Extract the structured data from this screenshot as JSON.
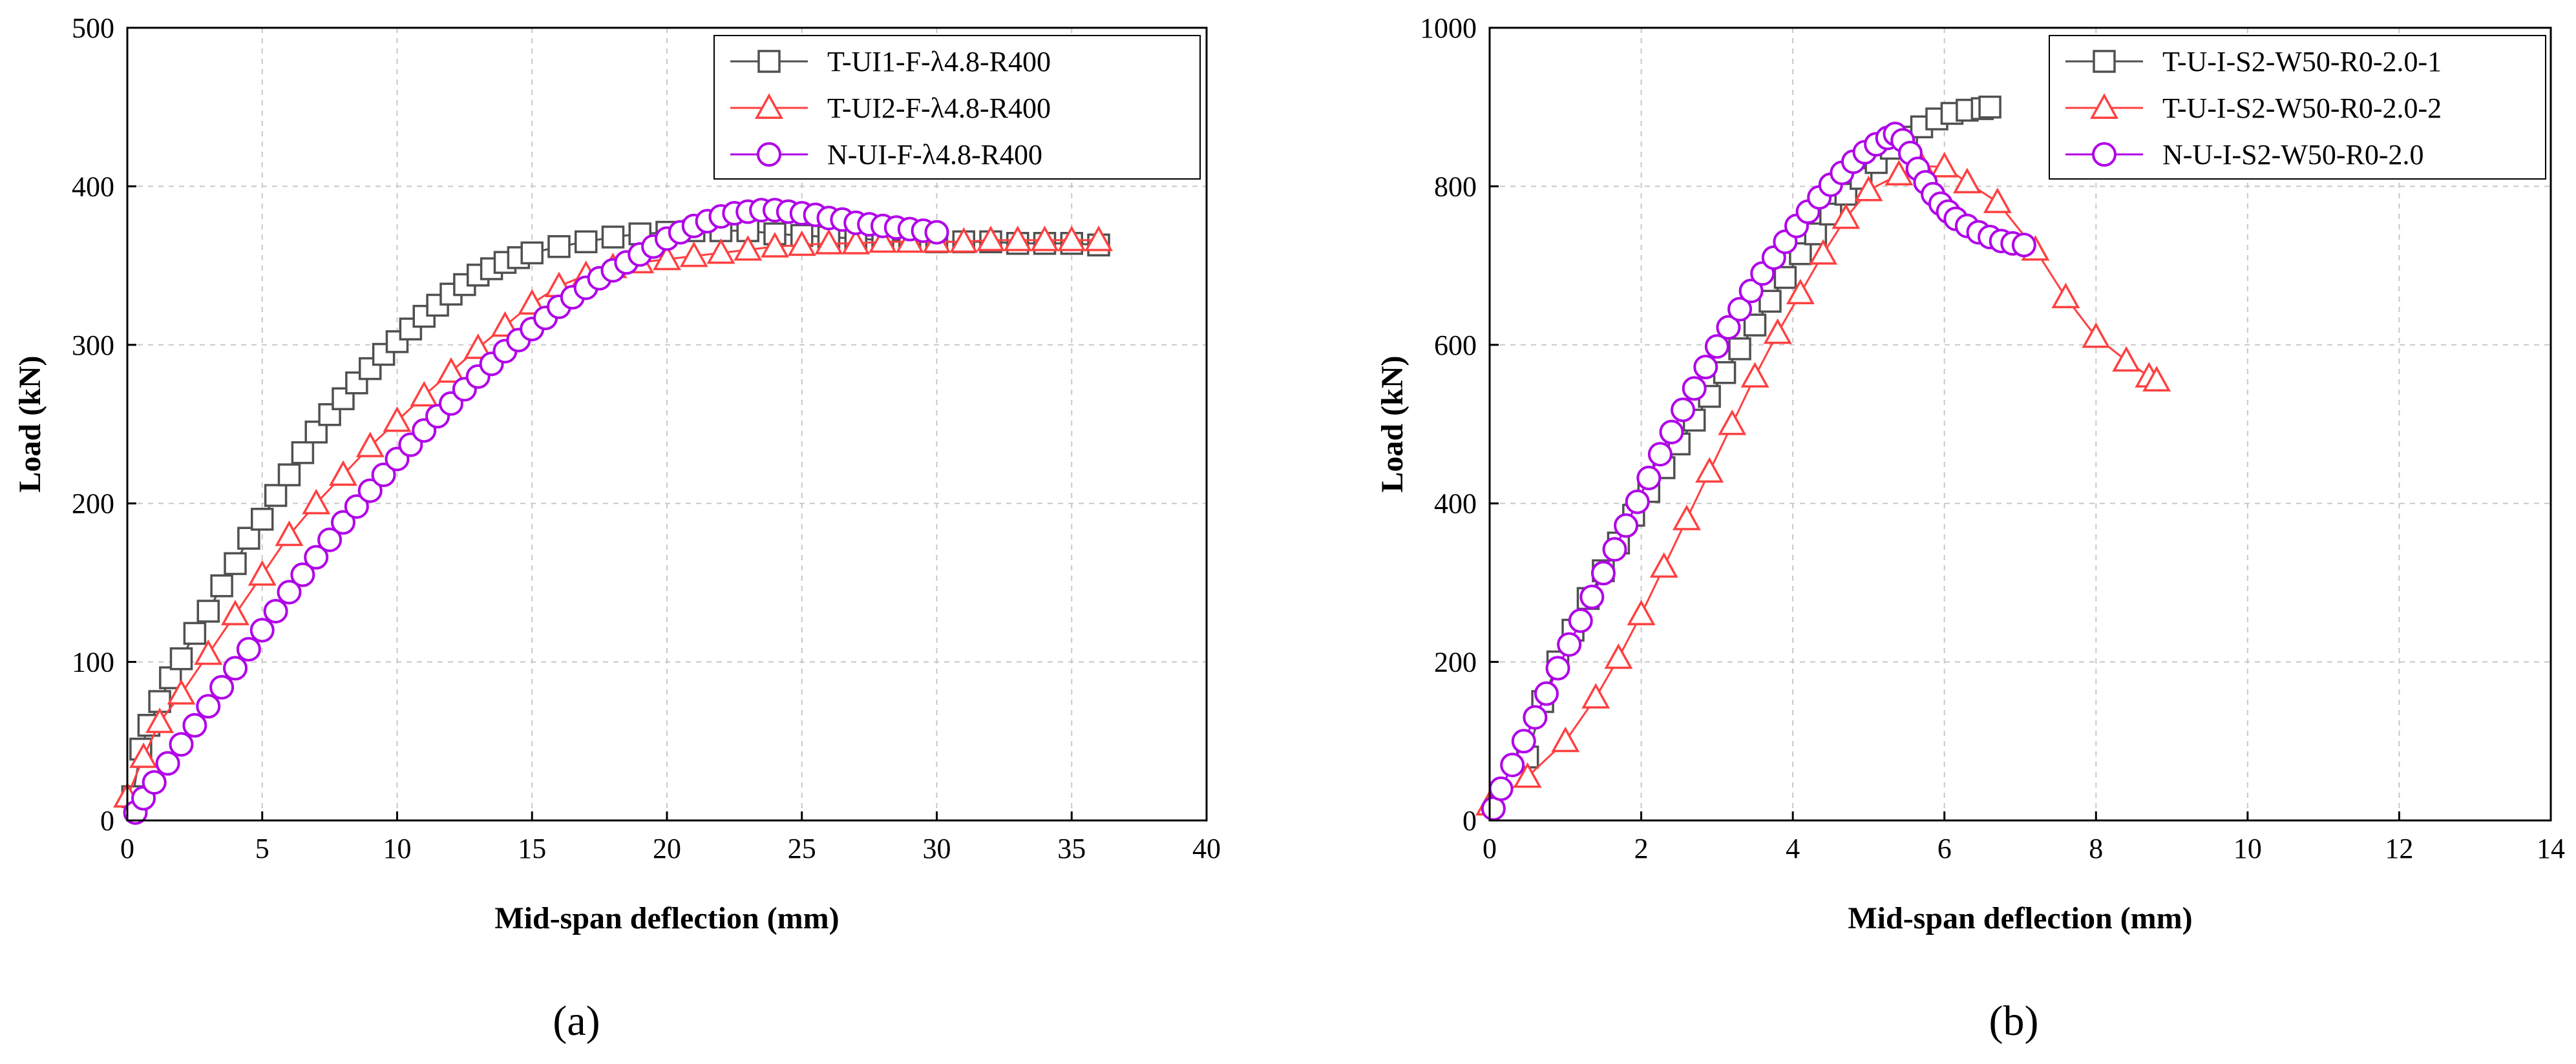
{
  "chart_data": [
    {
      "type": "line",
      "caption": "(a)",
      "xlabel": "Mid-span deflection (mm)",
      "ylabel": "Load (kN)",
      "xlim": [
        0,
        40
      ],
      "ylim": [
        0,
        500
      ],
      "xticks": [
        0,
        5,
        10,
        15,
        20,
        25,
        30,
        35,
        40
      ],
      "yticks": [
        0,
        100,
        200,
        300,
        400,
        500
      ],
      "grid": true,
      "legend_position": "top-right",
      "series": [
        {
          "name": "T-UI1-F-λ4.8-R400",
          "color": "#505050",
          "marker": "square",
          "points": [
            [
              0.2,
              15
            ],
            [
              0.5,
              45
            ],
            [
              0.8,
              60
            ],
            [
              1.2,
              75
            ],
            [
              1.6,
              90
            ],
            [
              2,
              102
            ],
            [
              2.5,
              118
            ],
            [
              3,
              132
            ],
            [
              3.5,
              148
            ],
            [
              4,
              162
            ],
            [
              4.5,
              178
            ],
            [
              5,
              190
            ],
            [
              5.5,
              205
            ],
            [
              6,
              218
            ],
            [
              6.5,
              232
            ],
            [
              7,
              245
            ],
            [
              7.5,
              256
            ],
            [
              8,
              266
            ],
            [
              8.5,
              276
            ],
            [
              9,
              285
            ],
            [
              9.5,
              294
            ],
            [
              10,
              302
            ],
            [
              10.5,
              310
            ],
            [
              11,
              318
            ],
            [
              11.5,
              325
            ],
            [
              12,
              332
            ],
            [
              12.5,
              338
            ],
            [
              13,
              344
            ],
            [
              13.5,
              348
            ],
            [
              14,
              352
            ],
            [
              14.5,
              355
            ],
            [
              15,
              358
            ],
            [
              16,
              362
            ],
            [
              17,
              365
            ],
            [
              18,
              368
            ],
            [
              19,
              370
            ],
            [
              20,
              371
            ],
            [
              21,
              372
            ],
            [
              22,
              372
            ],
            [
              23,
              372
            ],
            [
              24,
              370
            ],
            [
              25,
              369
            ],
            [
              26,
              368
            ],
            [
              27,
              367
            ],
            [
              28,
              366
            ],
            [
              29,
              366
            ],
            [
              30,
              365
            ],
            [
              31,
              365
            ],
            [
              32,
              365
            ],
            [
              33,
              364
            ],
            [
              34,
              364
            ],
            [
              35,
              364
            ],
            [
              36,
              363
            ]
          ]
        },
        {
          "name": "T-UI2-F-λ4.8-R400",
          "color": "#ff4040",
          "marker": "triangle",
          "points": [
            [
              0,
              15
            ],
            [
              0.6,
              40
            ],
            [
              1.2,
              62
            ],
            [
              2,
              80
            ],
            [
              3,
              105
            ],
            [
              4,
              130
            ],
            [
              5,
              155
            ],
            [
              6,
              180
            ],
            [
              7,
              200
            ],
            [
              8,
              218
            ],
            [
              9,
              236
            ],
            [
              10,
              252
            ],
            [
              11,
              268
            ],
            [
              12,
              283
            ],
            [
              13,
              298
            ],
            [
              14,
              312
            ],
            [
              15,
              326
            ],
            [
              16,
              337
            ],
            [
              17,
              344
            ],
            [
              18,
              349
            ],
            [
              19,
              352
            ],
            [
              20,
              354
            ],
            [
              21,
              356
            ],
            [
              22,
              358
            ],
            [
              23,
              360
            ],
            [
              24,
              362
            ],
            [
              25,
              363
            ],
            [
              26,
              364
            ],
            [
              27,
              364
            ],
            [
              28,
              365
            ],
            [
              29,
              365
            ],
            [
              30,
              365
            ],
            [
              31,
              365
            ],
            [
              32,
              366
            ],
            [
              33,
              366
            ],
            [
              34,
              366
            ],
            [
              35,
              366
            ],
            [
              36,
              366
            ]
          ]
        },
        {
          "name": "N-UI-F-λ4.8-R400",
          "color": "#b000e8",
          "marker": "circle",
          "points": [
            [
              0.3,
              5
            ],
            [
              0.6,
              14
            ],
            [
              1,
              24
            ],
            [
              1.5,
              36
            ],
            [
              2,
              48
            ],
            [
              2.5,
              60
            ],
            [
              3,
              72
            ],
            [
              3.5,
              84
            ],
            [
              4,
              96
            ],
            [
              4.5,
              108
            ],
            [
              5,
              120
            ],
            [
              5.5,
              132
            ],
            [
              6,
              144
            ],
            [
              6.5,
              155
            ],
            [
              7,
              166
            ],
            [
              7.5,
              177
            ],
            [
              8,
              188
            ],
            [
              8.5,
              198
            ],
            [
              9,
              208
            ],
            [
              9.5,
              218
            ],
            [
              10,
              228
            ],
            [
              10.5,
              237
            ],
            [
              11,
              246
            ],
            [
              11.5,
              255
            ],
            [
              12,
              263
            ],
            [
              12.5,
              272
            ],
            [
              13,
              280
            ],
            [
              13.5,
              288
            ],
            [
              14,
              296
            ],
            [
              14.5,
              303
            ],
            [
              15,
              310
            ],
            [
              15.5,
              317
            ],
            [
              16,
              324
            ],
            [
              16.5,
              330
            ],
            [
              17,
              336
            ],
            [
              17.5,
              342
            ],
            [
              18,
              347
            ],
            [
              18.5,
              352
            ],
            [
              19,
              357
            ],
            [
              19.5,
              362
            ],
            [
              20,
              367
            ],
            [
              20.5,
              371
            ],
            [
              21,
              375
            ],
            [
              21.5,
              378
            ],
            [
              22,
              381
            ],
            [
              22.5,
              383
            ],
            [
              23,
              384
            ],
            [
              23.5,
              385
            ],
            [
              24,
              385
            ],
            [
              24.5,
              384
            ],
            [
              25,
              383
            ],
            [
              25.5,
              382
            ],
            [
              26,
              380
            ],
            [
              26.5,
              379
            ],
            [
              27,
              377
            ],
            [
              27.5,
              376
            ],
            [
              28,
              375
            ],
            [
              28.5,
              374
            ],
            [
              29,
              373
            ],
            [
              29.5,
              372
            ],
            [
              30,
              371
            ]
          ]
        }
      ]
    },
    {
      "type": "line",
      "caption": "(b)",
      "xlabel": "Mid-span deflection (mm)",
      "ylabel": "Load (kN)",
      "xlim": [
        0,
        14
      ],
      "ylim": [
        0,
        1000
      ],
      "xticks": [
        0,
        2,
        4,
        6,
        8,
        10,
        12,
        14
      ],
      "yticks": [
        0,
        200,
        400,
        600,
        800,
        1000
      ],
      "grid": true,
      "legend_position": "top-right",
      "series": [
        {
          "name": "T-U-I-S2-W50-R0-2.0-1",
          "color": "#505050",
          "marker": "square",
          "points": [
            [
              0.5,
              80
            ],
            [
              0.7,
              150
            ],
            [
              0.9,
              200
            ],
            [
              1.1,
              240
            ],
            [
              1.3,
              280
            ],
            [
              1.5,
              315
            ],
            [
              1.7,
              350
            ],
            [
              1.9,
              385
            ],
            [
              2.1,
              415
            ],
            [
              2.3,
              445
            ],
            [
              2.5,
              475
            ],
            [
              2.7,
              505
            ],
            [
              2.9,
              535
            ],
            [
              3.1,
              565
            ],
            [
              3.3,
              595
            ],
            [
              3.5,
              625
            ],
            [
              3.7,
              655
            ],
            [
              3.9,
              685
            ],
            [
              4.1,
              715
            ],
            [
              4.3,
              740
            ],
            [
              4.5,
              765
            ],
            [
              4.7,
              790
            ],
            [
              4.9,
              810
            ],
            [
              5.1,
              830
            ],
            [
              5.3,
              848
            ],
            [
              5.5,
              862
            ],
            [
              5.7,
              875
            ],
            [
              5.9,
              885
            ],
            [
              6.1,
              892
            ],
            [
              6.3,
              896
            ],
            [
              6.5,
              898
            ],
            [
              6.6,
              900
            ]
          ]
        },
        {
          "name": "T-U-I-S2-W50-R0-2.0-2",
          "color": "#ff4040",
          "marker": "triangle",
          "points": [
            [
              0,
              20
            ],
            [
              0.5,
              55
            ],
            [
              1,
              100
            ],
            [
              1.4,
              155
            ],
            [
              1.7,
              205
            ],
            [
              2,
              260
            ],
            [
              2.3,
              320
            ],
            [
              2.6,
              380
            ],
            [
              2.9,
              440
            ],
            [
              3.2,
              500
            ],
            [
              3.5,
              560
            ],
            [
              3.8,
              615
            ],
            [
              4.1,
              665
            ],
            [
              4.4,
              715
            ],
            [
              4.7,
              760
            ],
            [
              5,
              795
            ],
            [
              5.4,
              815
            ],
            [
              5.7,
              825
            ],
            [
              6,
              825
            ],
            [
              6.3,
              805
            ],
            [
              6.7,
              780
            ],
            [
              7.2,
              720
            ],
            [
              7.6,
              660
            ],
            [
              8,
              610
            ],
            [
              8.4,
              580
            ],
            [
              8.7,
              560
            ],
            [
              8.8,
              555
            ]
          ]
        },
        {
          "name": "N-U-I-S2-W50-R0-2.0",
          "color": "#b000e8",
          "marker": "circle",
          "points": [
            [
              0.05,
              15
            ],
            [
              0.15,
              40
            ],
            [
              0.3,
              70
            ],
            [
              0.45,
              100
            ],
            [
              0.6,
              130
            ],
            [
              0.75,
              160
            ],
            [
              0.9,
              192
            ],
            [
              1.05,
              222
            ],
            [
              1.2,
              252
            ],
            [
              1.35,
              282
            ],
            [
              1.5,
              312
            ],
            [
              1.65,
              342
            ],
            [
              1.8,
              372
            ],
            [
              1.95,
              402
            ],
            [
              2.1,
              432
            ],
            [
              2.25,
              462
            ],
            [
              2.4,
              490
            ],
            [
              2.55,
              518
            ],
            [
              2.7,
              545
            ],
            [
              2.85,
              572
            ],
            [
              3,
              598
            ],
            [
              3.15,
              622
            ],
            [
              3.3,
              645
            ],
            [
              3.45,
              668
            ],
            [
              3.6,
              690
            ],
            [
              3.75,
              710
            ],
            [
              3.9,
              730
            ],
            [
              4.05,
              750
            ],
            [
              4.2,
              768
            ],
            [
              4.35,
              786
            ],
            [
              4.5,
              802
            ],
            [
              4.65,
              817
            ],
            [
              4.8,
              831
            ],
            [
              4.95,
              843
            ],
            [
              5.1,
              853
            ],
            [
              5.25,
              861
            ],
            [
              5.35,
              866
            ],
            [
              5.45,
              858
            ],
            [
              5.55,
              842
            ],
            [
              5.65,
              822
            ],
            [
              5.75,
              805
            ],
            [
              5.85,
              790
            ],
            [
              5.95,
              778
            ],
            [
              6.05,
              768
            ],
            [
              6.15,
              759
            ],
            [
              6.3,
              750
            ],
            [
              6.45,
              742
            ],
            [
              6.6,
              736
            ],
            [
              6.75,
              731
            ],
            [
              6.9,
              728
            ],
            [
              7.05,
              726
            ]
          ]
        }
      ]
    }
  ]
}
